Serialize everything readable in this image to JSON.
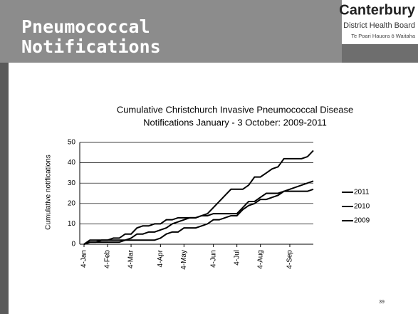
{
  "slide": {
    "title": "Pneumococcal Notifications",
    "logo_name": "Canterbury",
    "logo_sub": "District Health Board",
    "logo_maori": "Te Poari Hauora ō Waitaha",
    "page_number": "39"
  },
  "chart_data": {
    "type": "line",
    "title": "Cumulative Christchurch  Invasive Pneumococcal Disease",
    "subtitle": "Notifications January - 3 October: 2009-2011",
    "y_label": "Cumulative notifications",
    "categories": [
      "4-Jan",
      null,
      null,
      null,
      "4-Feb",
      null,
      null,
      null,
      "4-Mar",
      null,
      null,
      null,
      null,
      "4-Apr",
      null,
      null,
      null,
      "4-May",
      null,
      null,
      null,
      null,
      "4-Jun",
      null,
      null,
      null,
      "4-Jul",
      null,
      null,
      null,
      "4-Aug",
      null,
      null,
      null,
      null,
      "4-Sep",
      null,
      null,
      null,
      null
    ],
    "series": [
      {
        "name": "2011",
        "color": "#000000",
        "values": [
          0,
          2,
          2,
          2,
          2,
          3,
          3,
          5,
          5,
          8,
          9,
          9,
          10,
          10,
          12,
          12,
          13,
          13,
          13,
          13,
          14,
          15,
          18,
          21,
          24,
          27,
          27,
          27,
          29,
          33,
          33,
          35,
          37,
          38,
          42,
          42,
          42,
          42,
          43,
          46
        ]
      },
      {
        "name": "2010",
        "color": "#000000",
        "values": [
          0,
          1,
          1,
          1,
          1,
          1,
          1,
          2,
          3,
          5,
          5,
          6,
          6,
          7,
          8,
          10,
          11,
          12,
          13,
          13,
          14,
          14,
          15,
          15,
          15,
          15,
          15,
          18,
          21,
          21,
          23,
          25,
          25,
          25,
          26,
          27,
          28,
          29,
          30,
          31
        ]
      },
      {
        "name": "2009",
        "color": "#000000",
        "values": [
          0,
          1,
          1,
          2,
          2,
          2,
          2,
          2,
          2,
          2,
          2,
          2,
          2,
          3,
          5,
          6,
          6,
          8,
          8,
          8,
          9,
          10,
          12,
          12,
          13,
          14,
          14,
          17,
          19,
          20,
          22,
          22,
          23,
          24,
          26,
          26,
          26,
          26,
          26,
          27
        ]
      }
    ],
    "ylim": [
      0,
      50
    ],
    "yticks": [
      0,
      10,
      20,
      30,
      40,
      50
    ],
    "grid": true,
    "legend": "right"
  }
}
